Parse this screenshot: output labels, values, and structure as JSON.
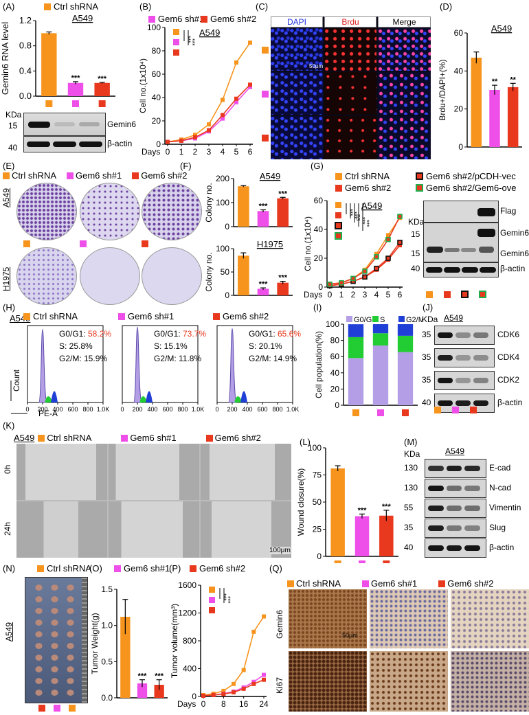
{
  "colors": {
    "ctrl": "#F7941D",
    "sh1": "#EE4FE8",
    "sh2": "#E8381E",
    "green": "#1FAE4B",
    "black": "#111111",
    "purple": "#B49FE6",
    "blue": "#1F3FD6",
    "greenbar": "#22CC33"
  },
  "legend": {
    "ctrl": "Ctrl shRNA",
    "sh1": "Gem6 sh#1",
    "sh2": "Gem6 sh#2",
    "vec": "Gem6 sh#2/pCDH-vec",
    "ove": "Gem6 sh#2/Gem6-ove"
  },
  "panels": {
    "A": "(A)",
    "B": "(B)",
    "C": "(C)",
    "D": "(D)",
    "E": "(E)",
    "F": "(F)",
    "G": "(G)",
    "H": "(H)",
    "I": "(I)",
    "J": "(J)",
    "K": "(K)",
    "L": "(L)",
    "M": "(M)",
    "N": "(N)",
    "O": "(O)",
    "P": "(P)",
    "Q": "(Q)"
  },
  "cell_line": "A549",
  "cell_line2": "H1975",
  "stars": {
    "three": "***",
    "two": "**",
    "one": "*",
    "ns": "ns"
  },
  "kda": "KDa",
  "imaging": {
    "dapi": "DAPI",
    "brdu": "Brdu",
    "merge": "Merge",
    "scale50": "50μm",
    "scale100": "100μm",
    "t0": "0h",
    "t24": "24h"
  },
  "blotsA": {
    "m15": "15",
    "m40": "40",
    "gemin6": "Gemin6",
    "actin": "β-actin"
  },
  "blotsG": {
    "flag": "Flag",
    "m15a": "15",
    "m15b": "15",
    "m40": "40",
    "gemin6a": "Gemin6",
    "gemin6b": "Gemin6",
    "actin": "β-actin"
  },
  "blotsJ": {
    "bands": [
      {
        "m": "35",
        "name": "CDK6"
      },
      {
        "m": "35",
        "name": "CDK4"
      },
      {
        "m": "35",
        "name": "CDK2"
      },
      {
        "m": "40",
        "name": "β-actin"
      }
    ]
  },
  "blotsM": {
    "bands": [
      {
        "m": "130",
        "name": "E-cad"
      },
      {
        "m": "130",
        "name": "N-cad"
      },
      {
        "m": "55",
        "name": "Vimentin"
      },
      {
        "m": "35",
        "name": "Slug"
      },
      {
        "m": "40",
        "name": "β-actin"
      }
    ]
  },
  "flow": {
    "xlabel": "PE-A",
    "ylabel": "Count",
    "ticks": [
      "0",
      "200",
      "400",
      "600",
      "800",
      "1.0K"
    ],
    "samples": [
      {
        "label": "Ctrl shRNA",
        "g1": "58.2%",
        "s": "25.8%",
        "g2": "15.9%"
      },
      {
        "label": "Gem6 sh#1",
        "g1": "73.7%",
        "s": "15.1%",
        "g2": "11.8%"
      },
      {
        "label": "Gem6 sh#2",
        "g1": "65.6%",
        "s": "20.1%",
        "g2": "14.9%"
      }
    ],
    "g1_prefix": "G0/G1: ",
    "s_prefix": "S: ",
    "g2_prefix": "G2/M: "
  },
  "ihc": {
    "gemin6": "Gemin6",
    "ki67": "Ki67",
    "scale": "50μm"
  },
  "chart_data": [
    {
      "id": "A",
      "type": "bar",
      "title": "A549",
      "ylabel": "Gemin6 RNA level",
      "ylim": [
        0,
        1.2
      ],
      "yticks": [
        "0.0",
        "0.4",
        "0.8",
        "1.2"
      ],
      "values": [
        1.0,
        0.21,
        0.21
      ],
      "errors": [
        0.02,
        0.02,
        0.01
      ],
      "sig": [
        "",
        "***",
        "***"
      ]
    },
    {
      "id": "B",
      "type": "line",
      "title": "A549",
      "xlabel": "Days",
      "ylabel": "Cell no.(1x10⁴)",
      "ylim": [
        0,
        100
      ],
      "yticks": [
        "0",
        "20",
        "40",
        "60",
        "80",
        "100"
      ],
      "x": [
        0,
        1,
        2,
        3,
        4,
        5,
        6
      ],
      "series": [
        {
          "key": "ctrl",
          "values": [
            2,
            4,
            8,
            17,
            38,
            70,
            87
          ]
        },
        {
          "key": "sh1",
          "values": [
            2,
            3,
            5,
            11,
            22,
            36,
            49
          ]
        },
        {
          "key": "sh2",
          "values": [
            2,
            3,
            6,
            12,
            25,
            39,
            51
          ]
        }
      ],
      "sig": [
        "***",
        "***"
      ]
    },
    {
      "id": "D",
      "type": "bar",
      "title": "A549",
      "ylabel": "Brdu+/DAPI+(%)",
      "ylim": [
        0,
        60
      ],
      "yticks": [
        "0",
        "20",
        "40",
        "60"
      ],
      "values": [
        47,
        30,
        31.5
      ],
      "errors": [
        3,
        2.5,
        2
      ],
      "sig": [
        "",
        "**",
        "**"
      ]
    },
    {
      "id": "F1",
      "type": "bar",
      "title": "A549",
      "ylabel": "Colony no.",
      "ylim": [
        0,
        200
      ],
      "yticks": [
        "0",
        "100",
        "200"
      ],
      "values": [
        168,
        65,
        118
      ],
      "errors": [
        3,
        5,
        4
      ],
      "sig": [
        "",
        "***",
        "***"
      ]
    },
    {
      "id": "F2",
      "type": "bar",
      "title": "H1975",
      "ylabel": "Colony no.",
      "ylim": [
        0,
        100
      ],
      "yticks": [
        "0",
        "50",
        "100"
      ],
      "values": [
        85,
        14,
        27
      ],
      "errors": [
        6,
        2,
        3
      ],
      "sig": [
        "",
        "***",
        "***"
      ]
    },
    {
      "id": "G",
      "type": "line",
      "title": "A549",
      "xlabel": "Days",
      "ylabel": "Cell no.(1x10⁴)",
      "ylim": [
        0,
        60
      ],
      "yticks": [
        "0",
        "20",
        "40",
        "60"
      ],
      "x": [
        0,
        1,
        2,
        3,
        4,
        5,
        6
      ],
      "series": [
        {
          "key": "ctrl",
          "values": [
            2,
            3,
            6,
            12,
            23,
            36,
            48
          ]
        },
        {
          "key": "sh2",
          "values": [
            1,
            2,
            4,
            7,
            12,
            19,
            29
          ]
        },
        {
          "key": "vec",
          "values": [
            1,
            2,
            4,
            7,
            13,
            20,
            31
          ]
        },
        {
          "key": "ove",
          "values": [
            2,
            3,
            6,
            11,
            21,
            33,
            49
          ]
        }
      ],
      "sig": [
        "***",
        "***",
        "ns",
        "***",
        "***"
      ]
    },
    {
      "id": "I",
      "type": "bar",
      "ylabel": "Cell population(%)",
      "ylim": [
        0,
        100
      ],
      "yticks": [
        "0",
        "20",
        "40",
        "60",
        "80",
        "100"
      ],
      "legend": [
        "G0/G1",
        "S",
        "G2/M"
      ],
      "stacks": [
        [
          58.2,
          25.8,
          15.9
        ],
        [
          73.7,
          15.1,
          11.8
        ],
        [
          65.6,
          20.1,
          14.9
        ]
      ]
    },
    {
      "id": "L",
      "type": "bar",
      "ylabel": "Wound closure(%)",
      "ylim": [
        0,
        100
      ],
      "yticks": [
        "0",
        "25",
        "50",
        "75",
        "100"
      ],
      "values": [
        81,
        37,
        37.5
      ],
      "errors": [
        2.5,
        2,
        5
      ],
      "sig": [
        "",
        "***",
        "***"
      ]
    },
    {
      "id": "O",
      "type": "bar",
      "ylabel": "Tumor Weight(g)",
      "ylim": [
        0,
        1.5
      ],
      "yticks": [
        "0.0",
        "0.5",
        "1.0",
        "1.5"
      ],
      "values": [
        1.12,
        0.2,
        0.18
      ],
      "errors": [
        0.24,
        0.05,
        0.07
      ],
      "sig": [
        "",
        "***",
        "***"
      ]
    },
    {
      "id": "P",
      "type": "line",
      "xlabel": "Days",
      "ylabel": "Tumor volume(mm³)",
      "ylim": [
        0,
        1600
      ],
      "yticks": [
        "0",
        "400",
        "800",
        "1200",
        "1600"
      ],
      "x": [
        0,
        4,
        8,
        12,
        16,
        20,
        24
      ],
      "xticks": [
        "0",
        "8",
        "16",
        "24"
      ],
      "series": [
        {
          "key": "ctrl",
          "values": [
            20,
            40,
            80,
            180,
            380,
            930,
            1150
          ]
        },
        {
          "key": "sh1",
          "values": [
            10,
            20,
            40,
            70,
            130,
            210,
            310
          ]
        },
        {
          "key": "sh2",
          "values": [
            10,
            20,
            35,
            60,
            110,
            180,
            240
          ]
        }
      ],
      "sig": [
        "***",
        "***"
      ]
    }
  ]
}
